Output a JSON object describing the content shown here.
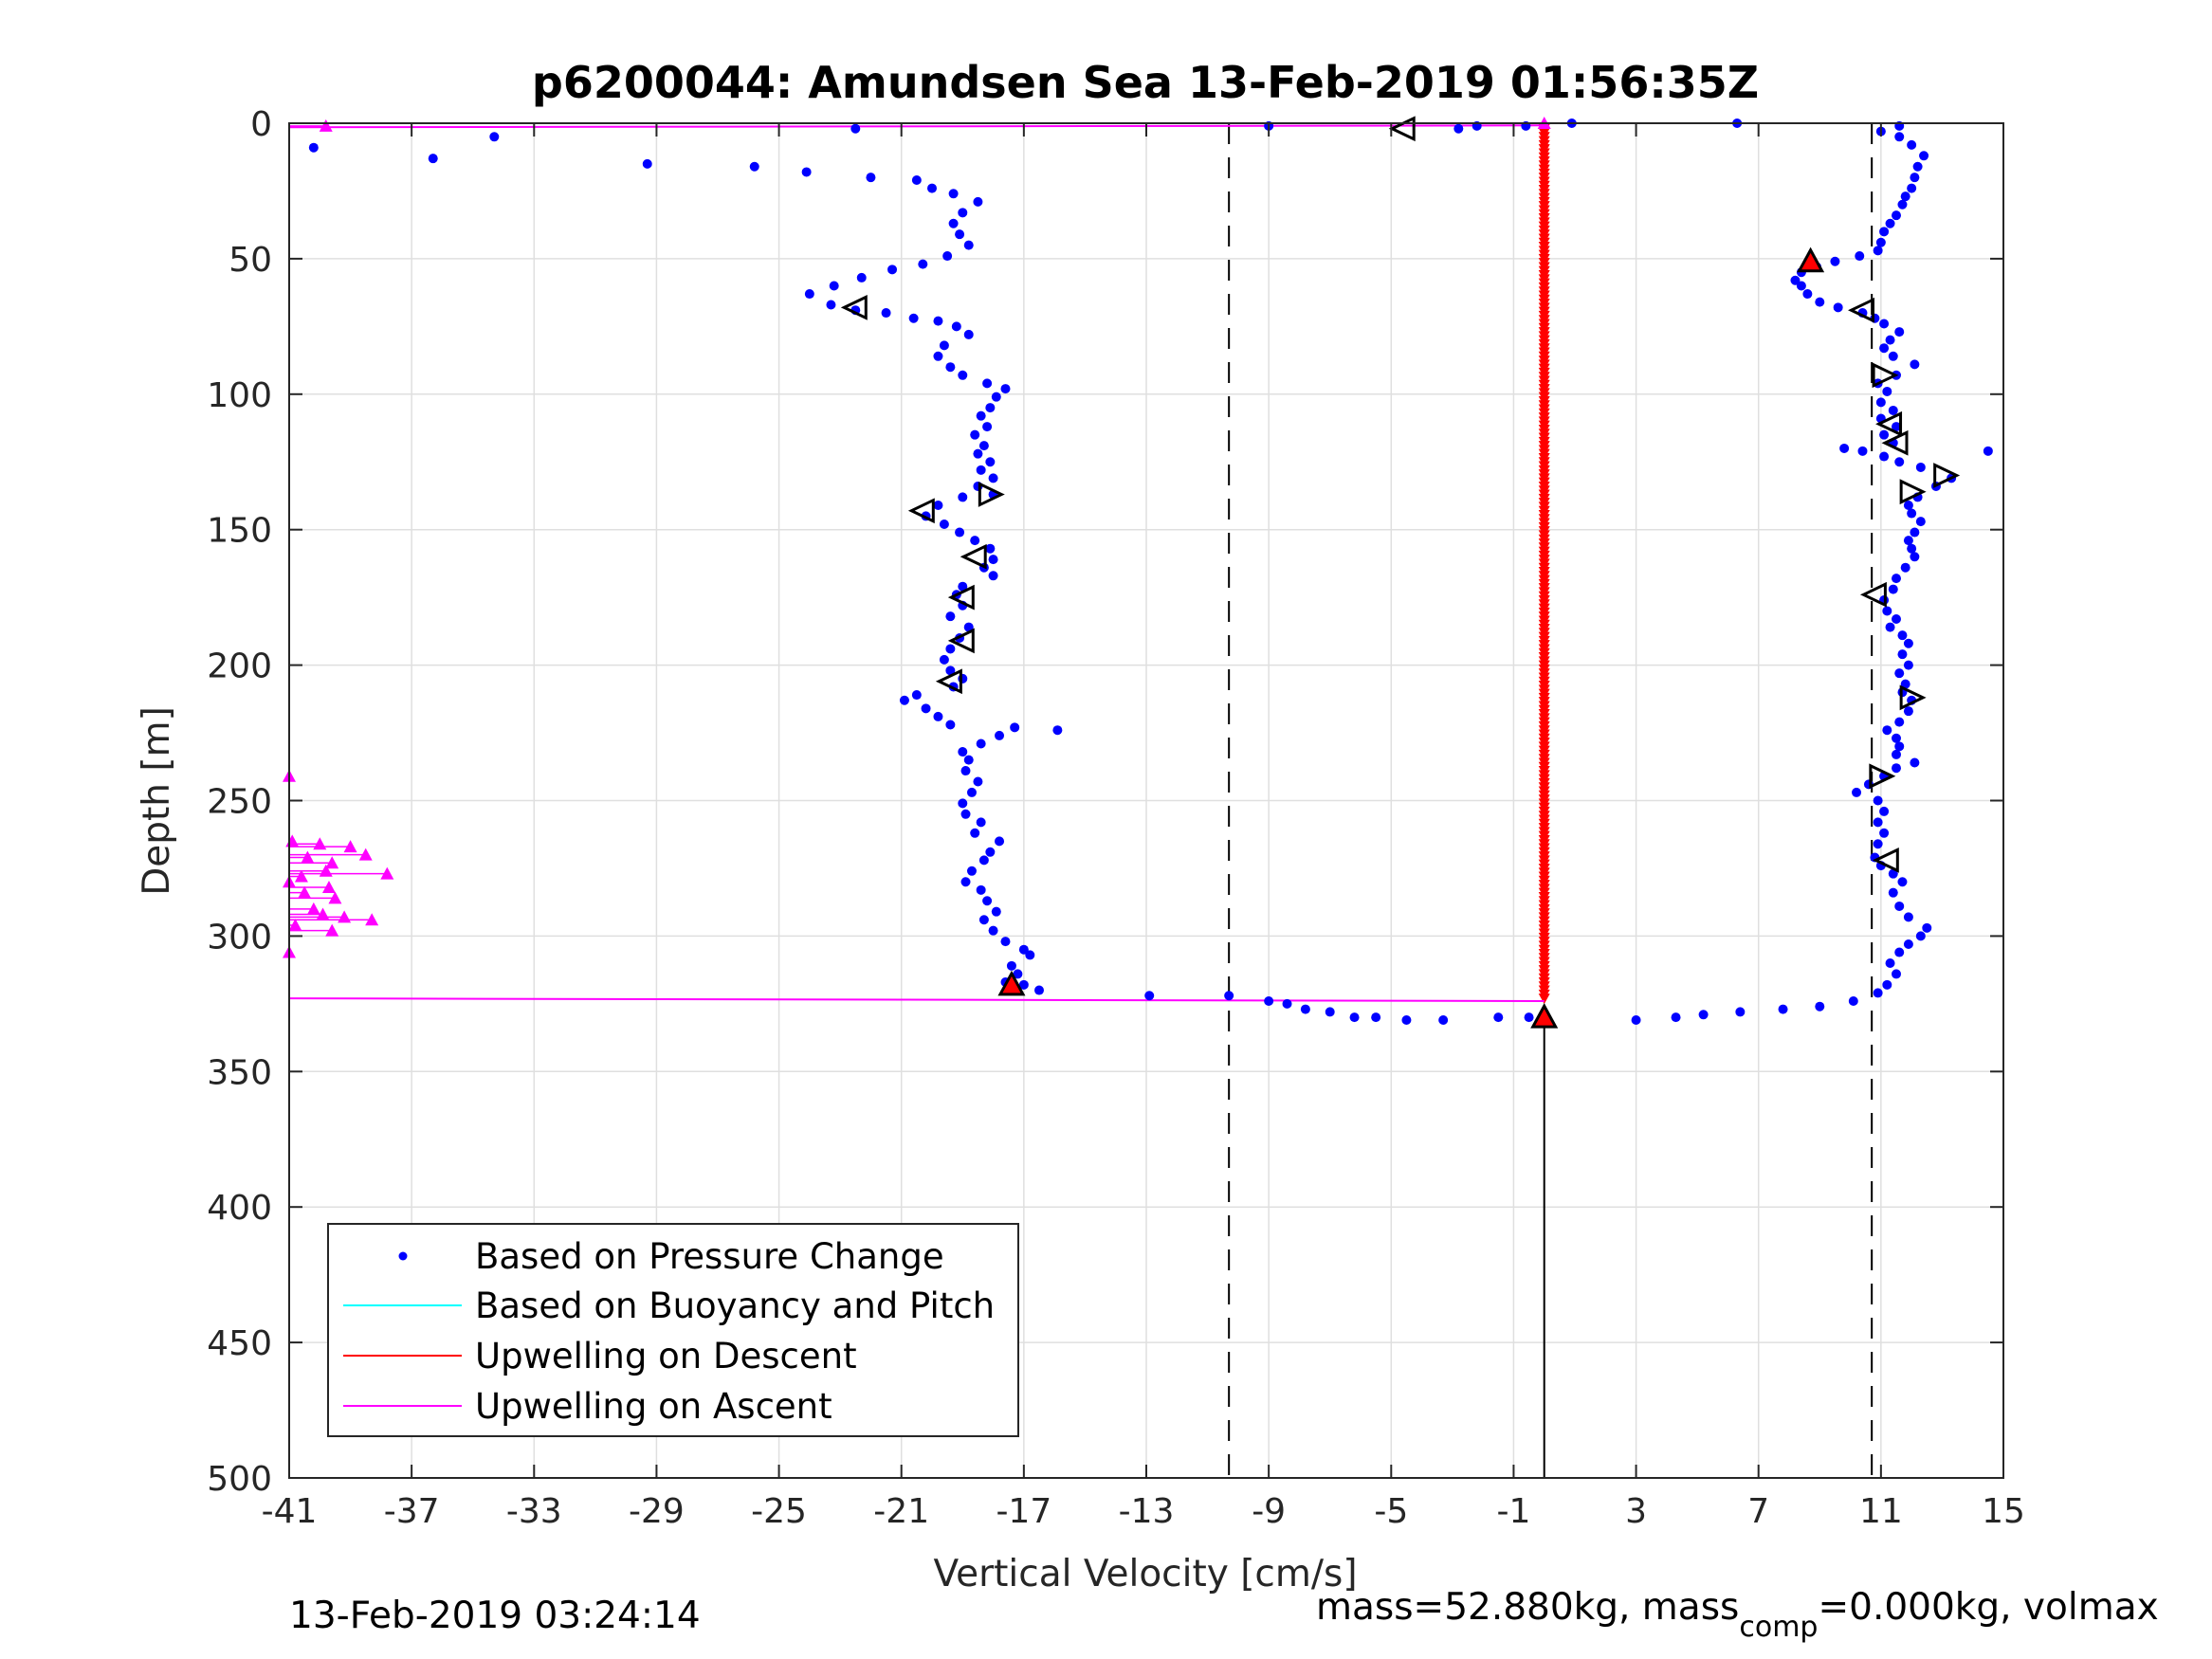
{
  "chart_data": {
    "type": "scatter",
    "title": "p6200044: Amundsen Sea 13-Feb-2019 01:56:35Z",
    "xlabel": "Vertical Velocity [cm/s]",
    "ylabel": "Depth [m]",
    "xlim": [
      -41,
      15
    ],
    "ylim": [
      0,
      500
    ],
    "y_reversed": true,
    "grid": true,
    "xticks": [
      "-41",
      "-37",
      "-33",
      "-29",
      "-25",
      "-21",
      "-17",
      "-13",
      "-9",
      "-5",
      "-1",
      "3",
      "7",
      "11",
      "15"
    ],
    "yticks": [
      "0",
      "50",
      "100",
      "150",
      "200",
      "250",
      "300",
      "350",
      "400",
      "450",
      "500"
    ],
    "vlines_dashed": [
      -10.3,
      10.7
    ],
    "vline_solid": {
      "x": 0.0,
      "from_depth": 330,
      "to_depth": 500
    },
    "legend": {
      "placement": "lower-left",
      "entries": [
        {
          "label": "Based on Pressure Change",
          "color": "#0000ff",
          "marker": "dot"
        },
        {
          "label": "Based on Buoyancy and Pitch",
          "color": "#00ffff",
          "marker": "line"
        },
        {
          "label": "Upwelling on Descent",
          "color": "#ff0000",
          "marker": "line"
        },
        {
          "label": "Upwelling on Ascent",
          "color": "#ff00ff",
          "marker": "line"
        }
      ]
    },
    "series": [
      {
        "name": "Based on Pressure Change",
        "color": "#0000ff",
        "descent": [
          [
            -22.5,
            2
          ],
          [
            -40.2,
            9
          ],
          [
            -34.3,
            5
          ],
          [
            -36.3,
            13
          ],
          [
            -29.3,
            15
          ],
          [
            -25.8,
            16
          ],
          [
            -24.1,
            18
          ],
          [
            -22.0,
            20
          ],
          [
            -20.5,
            21
          ],
          [
            -20.0,
            24
          ],
          [
            -19.3,
            26
          ],
          [
            -18.5,
            29
          ],
          [
            -19.0,
            33
          ],
          [
            -19.3,
            37
          ],
          [
            -19.1,
            41
          ],
          [
            -18.8,
            45
          ],
          [
            -19.5,
            49
          ],
          [
            -20.3,
            52
          ],
          [
            -21.3,
            54
          ],
          [
            -22.3,
            57
          ],
          [
            -23.2,
            60
          ],
          [
            -24.0,
            63
          ],
          [
            -23.3,
            67
          ],
          [
            -22.5,
            69
          ],
          [
            -21.5,
            70
          ],
          [
            -20.6,
            72
          ],
          [
            -19.8,
            73
          ],
          [
            -19.2,
            75
          ],
          [
            -18.8,
            78
          ],
          [
            -19.6,
            82
          ],
          [
            -19.8,
            86
          ],
          [
            -19.4,
            90
          ],
          [
            -19.0,
            93
          ],
          [
            -18.2,
            96
          ],
          [
            -17.6,
            98
          ],
          [
            -17.9,
            101
          ],
          [
            -18.1,
            105
          ],
          [
            -18.4,
            108
          ],
          [
            -18.2,
            112
          ],
          [
            -18.6,
            115
          ],
          [
            -18.3,
            119
          ],
          [
            -18.5,
            122
          ],
          [
            -18.1,
            125
          ],
          [
            -18.4,
            128
          ],
          [
            -18.0,
            131
          ],
          [
            -18.5,
            134
          ],
          [
            -18.0,
            137
          ],
          [
            -19.0,
            138
          ],
          [
            -19.8,
            141
          ],
          [
            -20.2,
            145
          ],
          [
            -19.6,
            148
          ],
          [
            -19.1,
            151
          ],
          [
            -18.6,
            154
          ],
          [
            -18.1,
            157
          ],
          [
            -18.0,
            161
          ],
          [
            -18.3,
            164
          ],
          [
            -18.0,
            167
          ],
          [
            -19.0,
            171
          ],
          [
            -19.2,
            174
          ],
          [
            -19.0,
            178
          ],
          [
            -19.4,
            182
          ],
          [
            -18.8,
            186
          ],
          [
            -19.1,
            190
          ],
          [
            -19.4,
            194
          ],
          [
            -19.6,
            198
          ],
          [
            -19.4,
            202
          ],
          [
            -19.0,
            205
          ],
          [
            -19.3,
            208
          ],
          [
            -20.5,
            211
          ],
          [
            -20.9,
            213
          ],
          [
            -20.2,
            216
          ],
          [
            -19.8,
            219
          ],
          [
            -19.4,
            222
          ],
          [
            -17.3,
            223
          ],
          [
            -15.9,
            224
          ],
          [
            -17.8,
            226
          ],
          [
            -18.4,
            229
          ],
          [
            -19.0,
            232
          ],
          [
            -18.8,
            235
          ],
          [
            -18.9,
            239
          ],
          [
            -18.5,
            243
          ],
          [
            -18.7,
            247
          ],
          [
            -19.0,
            251
          ],
          [
            -18.9,
            255
          ],
          [
            -18.4,
            258
          ],
          [
            -18.6,
            262
          ],
          [
            -17.8,
            265
          ],
          [
            -18.1,
            269
          ],
          [
            -18.3,
            272
          ],
          [
            -18.7,
            276
          ],
          [
            -18.9,
            280
          ],
          [
            -18.4,
            283
          ],
          [
            -18.2,
            287
          ],
          [
            -17.9,
            291
          ],
          [
            -18.3,
            294
          ],
          [
            -18.0,
            298
          ],
          [
            -17.6,
            302
          ],
          [
            -17.0,
            305
          ],
          [
            -16.8,
            307
          ],
          [
            -17.4,
            311
          ],
          [
            -17.2,
            314
          ],
          [
            -17.6,
            317
          ],
          [
            -16.5,
            320
          ],
          [
            -17.0,
            318
          ],
          [
            -12.9,
            322
          ],
          [
            -10.3,
            322
          ],
          [
            -9.0,
            324
          ],
          [
            -8.4,
            325
          ],
          [
            -7.8,
            327
          ],
          [
            -7.0,
            328
          ],
          [
            -6.2,
            330
          ],
          [
            -5.5,
            330
          ],
          [
            -4.5,
            331
          ],
          [
            -3.3,
            331
          ],
          [
            -1.5,
            330
          ],
          [
            -0.5,
            330
          ]
        ],
        "ascent": [
          [
            3.0,
            331
          ],
          [
            4.3,
            330
          ],
          [
            5.2,
            329
          ],
          [
            6.4,
            328
          ],
          [
            7.8,
            327
          ],
          [
            9.0,
            326
          ],
          [
            10.1,
            324
          ],
          [
            10.9,
            321
          ],
          [
            11.2,
            318
          ],
          [
            11.5,
            314
          ],
          [
            11.3,
            310
          ],
          [
            11.6,
            306
          ],
          [
            11.9,
            303
          ],
          [
            12.3,
            300
          ],
          [
            12.5,
            297
          ],
          [
            11.9,
            293
          ],
          [
            11.6,
            289
          ],
          [
            11.4,
            284
          ],
          [
            11.7,
            280
          ],
          [
            11.4,
            277
          ],
          [
            11.0,
            274
          ],
          [
            10.8,
            271
          ],
          [
            10.9,
            266
          ],
          [
            11.1,
            262
          ],
          [
            10.9,
            258
          ],
          [
            11.1,
            254
          ],
          [
            10.9,
            250
          ],
          [
            10.2,
            247
          ],
          [
            10.6,
            244
          ],
          [
            11.1,
            241
          ],
          [
            11.5,
            238
          ],
          [
            12.1,
            236
          ],
          [
            11.5,
            233
          ],
          [
            11.6,
            230
          ],
          [
            11.5,
            227
          ],
          [
            11.2,
            224
          ],
          [
            11.6,
            221
          ],
          [
            11.9,
            217
          ],
          [
            12.0,
            213
          ],
          [
            11.7,
            210
          ],
          [
            11.8,
            207
          ],
          [
            11.6,
            203
          ],
          [
            11.9,
            200
          ],
          [
            11.7,
            196
          ],
          [
            11.9,
            192
          ],
          [
            11.7,
            189
          ],
          [
            11.3,
            186
          ],
          [
            11.5,
            183
          ],
          [
            11.2,
            180
          ],
          [
            11.1,
            176
          ],
          [
            11.4,
            172
          ],
          [
            11.5,
            168
          ],
          [
            11.8,
            164
          ],
          [
            12.1,
            160
          ],
          [
            12.0,
            157
          ],
          [
            11.9,
            154
          ],
          [
            12.1,
            151
          ],
          [
            12.3,
            147
          ],
          [
            12.0,
            144
          ],
          [
            11.9,
            141
          ],
          [
            12.2,
            138
          ],
          [
            12.8,
            134
          ],
          [
            13.3,
            131
          ],
          [
            14.5,
            121
          ],
          [
            12.3,
            127
          ],
          [
            11.6,
            125
          ],
          [
            11.1,
            123
          ],
          [
            10.4,
            121
          ],
          [
            9.8,
            120
          ],
          [
            11.4,
            118
          ],
          [
            11.1,
            115
          ],
          [
            11.5,
            112
          ],
          [
            11.0,
            109
          ],
          [
            11.4,
            106
          ],
          [
            11.0,
            103
          ],
          [
            11.2,
            99
          ],
          [
            10.9,
            96
          ],
          [
            11.5,
            93
          ],
          [
            12.1,
            89
          ],
          [
            11.4,
            86
          ],
          [
            11.1,
            83
          ],
          [
            11.3,
            80
          ],
          [
            11.6,
            77
          ],
          [
            11.1,
            74
          ],
          [
            10.8,
            72
          ],
          [
            10.4,
            70
          ],
          [
            9.6,
            68
          ],
          [
            9.0,
            66
          ],
          [
            8.6,
            63
          ],
          [
            8.4,
            60
          ],
          [
            8.2,
            58
          ],
          [
            8.4,
            55
          ],
          [
            8.9,
            53
          ],
          [
            9.5,
            51
          ],
          [
            10.3,
            49
          ],
          [
            10.9,
            47
          ],
          [
            11.0,
            44
          ],
          [
            11.1,
            40
          ],
          [
            11.3,
            37
          ],
          [
            11.5,
            34
          ],
          [
            11.7,
            30
          ],
          [
            11.8,
            27
          ],
          [
            12.0,
            24
          ],
          [
            12.1,
            20
          ],
          [
            12.2,
            16
          ],
          [
            12.4,
            12
          ],
          [
            12.0,
            8
          ],
          [
            11.6,
            5
          ],
          [
            11.0,
            3
          ],
          [
            11.6,
            1
          ],
          [
            6.3,
            0
          ],
          [
            0.9,
            0
          ],
          [
            -0.6,
            1
          ],
          [
            -2.8,
            2
          ],
          [
            -2.2,
            1
          ],
          [
            -9.0,
            1
          ]
        ]
      }
    ],
    "upwelling_descent_marker_depth": {
      "x": 0.0,
      "from": 2,
      "to": 324
    },
    "upwelling_ascent": {
      "surface_line_depth": 1.5,
      "bottom_line_depth": 323,
      "triangles": [
        [
          -39.8,
          1
        ],
        [
          -41.0,
          241
        ],
        [
          -40.9,
          265
        ],
        [
          -40.0,
          266
        ],
        [
          -39.0,
          267
        ],
        [
          -38.5,
          270
        ],
        [
          -40.4,
          271
        ],
        [
          -39.6,
          273
        ],
        [
          -39.8,
          276
        ],
        [
          -37.8,
          277
        ],
        [
          -40.6,
          278
        ],
        [
          -41.0,
          280
        ],
        [
          -39.7,
          282
        ],
        [
          -40.5,
          284
        ],
        [
          -39.5,
          286
        ],
        [
          -40.2,
          290
        ],
        [
          -39.9,
          292
        ],
        [
          -39.2,
          293
        ],
        [
          -38.3,
          294
        ],
        [
          -40.8,
          296
        ],
        [
          -39.6,
          298
        ],
        [
          -41.0,
          306
        ]
      ]
    },
    "ballast_markers": [
      {
        "x": -4.6,
        "depth": 2,
        "dir": "left"
      },
      {
        "x": -22.5,
        "depth": 68,
        "dir": "left"
      },
      {
        "x": -18.1,
        "depth": 137,
        "dir": "right"
      },
      {
        "x": -20.3,
        "depth": 143,
        "dir": "left"
      },
      {
        "x": -18.6,
        "depth": 160,
        "dir": "left"
      },
      {
        "x": -19.0,
        "depth": 175,
        "dir": "left"
      },
      {
        "x": -19.0,
        "depth": 191,
        "dir": "left"
      },
      {
        "x": -19.4,
        "depth": 206,
        "dir": "left"
      },
      {
        "x": 10.4,
        "depth": 69,
        "dir": "left"
      },
      {
        "x": 11.1,
        "depth": 93,
        "dir": "right"
      },
      {
        "x": 11.3,
        "depth": 111,
        "dir": "left"
      },
      {
        "x": 11.5,
        "depth": 118,
        "dir": "left"
      },
      {
        "x": 13.1,
        "depth": 130,
        "dir": "right"
      },
      {
        "x": 12.0,
        "depth": 136,
        "dir": "right"
      },
      {
        "x": 10.8,
        "depth": 174,
        "dir": "left"
      },
      {
        "x": 12.0,
        "depth": 212,
        "dir": "right"
      },
      {
        "x": 11.0,
        "depth": 241,
        "dir": "right"
      },
      {
        "x": 11.2,
        "depth": 272,
        "dir": "left"
      }
    ],
    "special_markers": [
      {
        "x": 8.7,
        "depth": 51
      },
      {
        "x": -17.4,
        "depth": 318
      },
      {
        "x": 0.0,
        "depth": 330
      }
    ]
  },
  "footer": {
    "timestamp": "13-Feb-2019 03:24:14",
    "mass_text": "mass=52.880kg, mass",
    "mass_sub": "comp",
    "mass_tail": "=0.000kg, volmax"
  }
}
